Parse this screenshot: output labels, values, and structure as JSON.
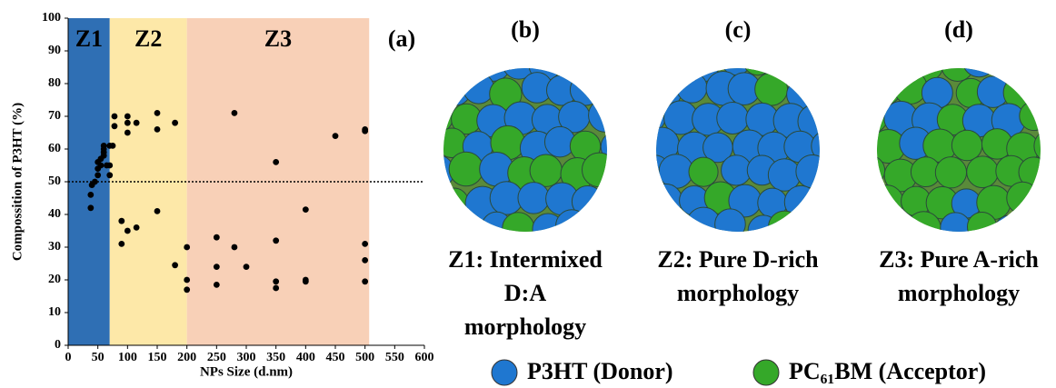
{
  "chart_data": {
    "type": "scatter",
    "panel_label": "(a)",
    "x_label": "NPs Size (d.nm)",
    "y_label": "Compossition of P3HT (%)",
    "xlim": [
      0,
      600
    ],
    "xticks": [
      0,
      50,
      100,
      150,
      200,
      250,
      300,
      350,
      400,
      450,
      500,
      550,
      600
    ],
    "ylim": [
      0,
      100
    ],
    "yticks": [
      0,
      10,
      20,
      30,
      40,
      50,
      60,
      70,
      80,
      90,
      100
    ],
    "reference_line": 50,
    "zones": [
      {
        "name": "Z1",
        "from": 0,
        "to": 70,
        "color": "#2f6fb4"
      },
      {
        "name": "Z2",
        "from": 70,
        "to": 200,
        "color": "#fde8a8"
      },
      {
        "name": "Z3",
        "from": 200,
        "to": 507,
        "color": "#f8d0b7"
      }
    ],
    "color": "#000000",
    "x": [
      38,
      38,
      40,
      45,
      50,
      50,
      50,
      55,
      55,
      60,
      60,
      60,
      60,
      65,
      70,
      70,
      70,
      75,
      78,
      78,
      90,
      90,
      100,
      100,
      100,
      100,
      115,
      115,
      150,
      150,
      150,
      180,
      180,
      200,
      200,
      200,
      250,
      250,
      250,
      280,
      280,
      300,
      350,
      350,
      350,
      350,
      400,
      400,
      400,
      450,
      500,
      500,
      500,
      500,
      500
    ],
    "values": [
      42,
      46,
      49,
      50,
      52,
      54,
      56,
      55,
      57,
      58,
      59,
      60,
      61,
      55,
      52,
      55,
      61,
      61,
      67,
      70,
      38,
      31,
      35,
      65,
      68,
      70,
      68,
      36,
      71,
      66,
      41,
      68,
      24.5,
      30,
      20,
      17,
      33,
      24,
      18.5,
      71,
      30,
      24,
      56,
      32,
      19.5,
      17.5,
      41.5,
      20,
      19.5,
      64,
      66,
      65.5,
      31,
      26,
      19.5
    ]
  },
  "panels": [
    {
      "label": "(b)",
      "caption": [
        "Z1: Intermixed",
        "D:A",
        "morphology"
      ]
    },
    {
      "label": "(c)",
      "caption": [
        "Z2: Pure D-rich",
        "morphology"
      ]
    },
    {
      "label": "(d)",
      "caption": [
        "Z3: Pure A-rich",
        "morphology"
      ]
    }
  ],
  "legend": [
    {
      "name": "P3HT (Donor)",
      "color": "#1f77d0"
    },
    {
      "name": "PC₆₁BM (Acceptor)",
      "color": "#35a829"
    }
  ]
}
